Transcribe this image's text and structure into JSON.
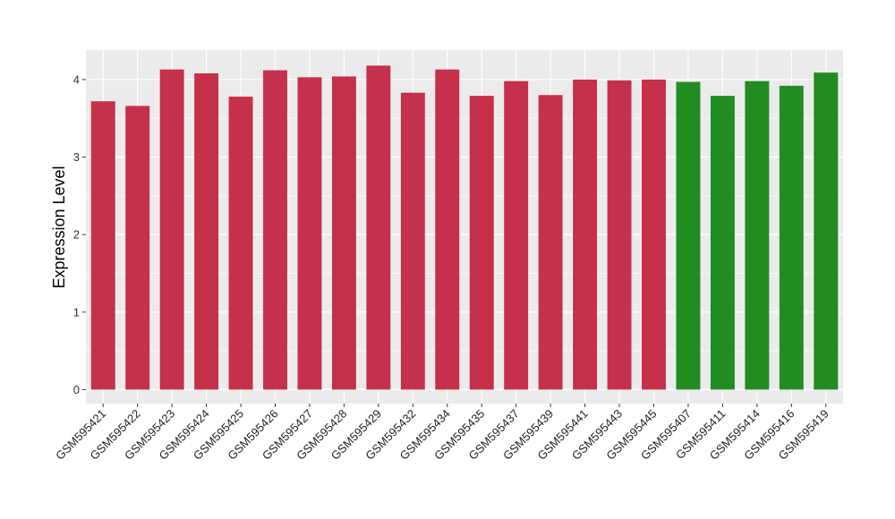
{
  "chart_data": {
    "type": "bar",
    "title": "",
    "xlabel": "",
    "ylabel": "Expression Level",
    "ylim": [
      -0.18,
      4.38
    ],
    "yticks": [
      0,
      1,
      2,
      3,
      4
    ],
    "ytick_labels": [
      "0",
      "1",
      "2",
      "3",
      "4"
    ],
    "grid": true,
    "legend": "none",
    "background_color": "#ebebeb",
    "grid_color": "#ffffff",
    "categories": [
      "GSM595421",
      "GSM595422",
      "GSM595423",
      "GSM595424",
      "GSM595425",
      "GSM595426",
      "GSM595427",
      "GSM595428",
      "GSM595429",
      "GSM595432",
      "GSM595434",
      "GSM595435",
      "GSM595437",
      "GSM595439",
      "GSM595441",
      "GSM595443",
      "GSM595445",
      "GSM595407",
      "GSM595411",
      "GSM595414",
      "GSM595416",
      "GSM595419"
    ],
    "values": [
      3.72,
      3.66,
      4.13,
      4.08,
      3.78,
      4.12,
      4.03,
      4.04,
      4.18,
      3.83,
      4.13,
      3.79,
      3.98,
      3.8,
      4.0,
      3.99,
      4.0,
      3.97,
      3.79,
      3.98,
      3.92,
      4.09
    ],
    "bar_colors": [
      "#c5304a",
      "#c5304a",
      "#c5304a",
      "#c5304a",
      "#c5304a",
      "#c5304a",
      "#c5304a",
      "#c5304a",
      "#c5304a",
      "#c5304a",
      "#c5304a",
      "#c5304a",
      "#c5304a",
      "#c5304a",
      "#c5304a",
      "#c5304a",
      "#c5304a",
      "#228b22",
      "#228b22",
      "#228b22",
      "#228b22",
      "#228b22"
    ]
  }
}
